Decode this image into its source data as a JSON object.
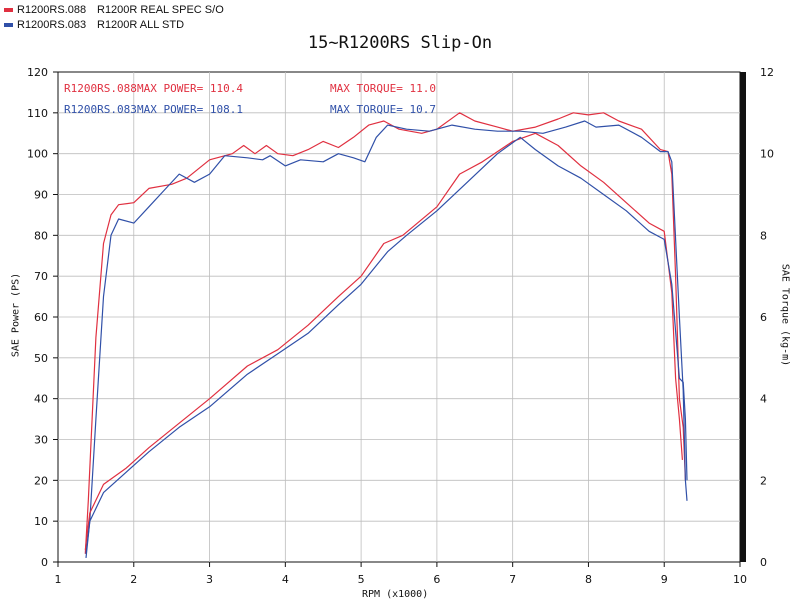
{
  "legend": [
    {
      "code": "R1200RS.088",
      "desc": "R1200R REAL SPEC S/O",
      "color": "#e03040"
    },
    {
      "code": "R1200RS.083",
      "desc": "R1200R ALL STD",
      "color": "#3050a8"
    }
  ],
  "chart_data": {
    "type": "line",
    "title": "15~R1200RS  Slip-On",
    "xlabel": "RPM (x1000)",
    "ylabel_left": "SAE Power (PS)",
    "ylabel_right": "SAE Torque (kg-m)",
    "xlim": [
      1,
      10
    ],
    "ylim_left": [
      0,
      120
    ],
    "ylim_right": [
      0,
      12
    ],
    "x_ticks": [
      "1",
      "2",
      "3",
      "4",
      "5",
      "6",
      "7",
      "8",
      "9",
      "10"
    ],
    "y_ticks_left": [
      "0",
      "10",
      "20",
      "30",
      "40",
      "50",
      "60",
      "70",
      "80",
      "90",
      "100",
      "110",
      "120"
    ],
    "y_ticks_right": [
      "0",
      "2",
      "4",
      "6",
      "8",
      "10",
      "12"
    ],
    "grid": true,
    "annotations": {
      "red_name": "R1200RS.088",
      "red_power": "MAX POWER= 110.4",
      "red_torque": "MAX TORQUE= 11.0",
      "blue_name": "R1200RS.083",
      "blue_power": "MAX POWER= 108.1",
      "blue_torque": "MAX TORQUE= 10.7"
    },
    "series": [
      {
        "name": "R1200RS.088",
        "measure": "power",
        "axis": "left",
        "color": "#e03040",
        "points": [
          [
            1.36,
            2
          ],
          [
            1.4,
            15
          ],
          [
            1.5,
            55
          ],
          [
            1.6,
            78
          ],
          [
            1.7,
            85
          ],
          [
            1.8,
            87.5
          ],
          [
            2.0,
            88
          ],
          [
            2.2,
            91.5
          ],
          [
            2.5,
            92.5
          ],
          [
            2.7,
            94
          ],
          [
            3.0,
            98.5
          ],
          [
            3.3,
            100
          ],
          [
            3.45,
            102
          ],
          [
            3.6,
            100
          ],
          [
            3.75,
            102
          ],
          [
            3.9,
            100
          ],
          [
            4.1,
            99.5
          ],
          [
            4.3,
            101
          ],
          [
            4.5,
            103
          ],
          [
            4.7,
            101.5
          ],
          [
            4.9,
            104
          ],
          [
            5.1,
            107
          ],
          [
            5.3,
            108
          ],
          [
            5.5,
            106
          ],
          [
            5.8,
            105
          ],
          [
            6.0,
            106
          ],
          [
            6.3,
            110
          ],
          [
            6.5,
            108
          ],
          [
            6.8,
            106.5
          ],
          [
            7.0,
            105.5
          ],
          [
            7.3,
            106.5
          ],
          [
            7.6,
            108.5
          ],
          [
            7.8,
            110
          ],
          [
            8.0,
            109.5
          ],
          [
            8.2,
            110
          ],
          [
            8.4,
            108
          ],
          [
            8.7,
            106
          ],
          [
            8.95,
            101
          ],
          [
            9.05,
            100.5
          ],
          [
            9.1,
            95
          ],
          [
            9.15,
            70
          ],
          [
            9.2,
            40
          ],
          [
            9.25,
            33
          ],
          [
            9.28,
            20
          ]
        ]
      },
      {
        "name": "R1200RS.083",
        "measure": "power",
        "axis": "left",
        "color": "#3050a8",
        "points": [
          [
            1.37,
            1
          ],
          [
            1.42,
            10
          ],
          [
            1.5,
            35
          ],
          [
            1.6,
            65
          ],
          [
            1.7,
            80
          ],
          [
            1.8,
            84
          ],
          [
            2.0,
            83
          ],
          [
            2.2,
            87
          ],
          [
            2.4,
            91
          ],
          [
            2.6,
            95
          ],
          [
            2.8,
            93
          ],
          [
            3.0,
            95
          ],
          [
            3.2,
            99.5
          ],
          [
            3.5,
            99
          ],
          [
            3.7,
            98.5
          ],
          [
            3.8,
            99.5
          ],
          [
            4.0,
            97
          ],
          [
            4.2,
            98.5
          ],
          [
            4.5,
            98
          ],
          [
            4.7,
            100
          ],
          [
            4.9,
            99
          ],
          [
            5.05,
            98
          ],
          [
            5.2,
            104
          ],
          [
            5.35,
            107
          ],
          [
            5.6,
            106
          ],
          [
            5.9,
            105.5
          ],
          [
            6.2,
            107
          ],
          [
            6.5,
            106
          ],
          [
            6.8,
            105.5
          ],
          [
            7.1,
            105.5
          ],
          [
            7.4,
            105
          ],
          [
            7.7,
            106.5
          ],
          [
            7.95,
            108
          ],
          [
            8.1,
            106.5
          ],
          [
            8.4,
            107
          ],
          [
            8.7,
            104
          ],
          [
            8.95,
            100.5
          ],
          [
            9.05,
            100.5
          ],
          [
            9.1,
            98
          ],
          [
            9.2,
            60
          ],
          [
            9.25,
            42
          ],
          [
            9.28,
            20
          ],
          [
            9.3,
            15
          ]
        ]
      },
      {
        "name": "R1200RS.088",
        "measure": "torque",
        "axis": "right",
        "color": "#e03040",
        "points": [
          [
            1.36,
            0.3
          ],
          [
            1.42,
            1.2
          ],
          [
            1.6,
            1.9
          ],
          [
            1.9,
            2.3
          ],
          [
            2.2,
            2.8
          ],
          [
            2.6,
            3.4
          ],
          [
            3.0,
            4.0
          ],
          [
            3.5,
            4.8
          ],
          [
            3.9,
            5.2
          ],
          [
            4.3,
            5.8
          ],
          [
            4.7,
            6.5
          ],
          [
            5.0,
            7.0
          ],
          [
            5.3,
            7.8
          ],
          [
            5.55,
            8.0
          ],
          [
            6.0,
            8.7
          ],
          [
            6.3,
            9.5
          ],
          [
            6.6,
            9.8
          ],
          [
            7.0,
            10.3
          ],
          [
            7.3,
            10.5
          ],
          [
            7.6,
            10.2
          ],
          [
            7.9,
            9.7
          ],
          [
            8.2,
            9.3
          ],
          [
            8.5,
            8.8
          ],
          [
            8.8,
            8.3
          ],
          [
            9.0,
            8.1
          ],
          [
            9.1,
            6.6
          ],
          [
            9.15,
            4.5
          ],
          [
            9.2,
            3.5
          ],
          [
            9.24,
            2.5
          ]
        ]
      },
      {
        "name": "R1200RS.083",
        "measure": "torque",
        "axis": "right",
        "color": "#3050a8",
        "points": [
          [
            1.37,
            0.2
          ],
          [
            1.42,
            1.0
          ],
          [
            1.6,
            1.7
          ],
          [
            1.9,
            2.2
          ],
          [
            2.2,
            2.7
          ],
          [
            2.6,
            3.3
          ],
          [
            3.0,
            3.8
          ],
          [
            3.5,
            4.6
          ],
          [
            3.9,
            5.1
          ],
          [
            4.3,
            5.6
          ],
          [
            4.7,
            6.3
          ],
          [
            5.0,
            6.8
          ],
          [
            5.35,
            7.6
          ],
          [
            5.6,
            8.0
          ],
          [
            6.0,
            8.6
          ],
          [
            6.4,
            9.3
          ],
          [
            6.8,
            10.0
          ],
          [
            7.1,
            10.4
          ],
          [
            7.3,
            10.1
          ],
          [
            7.6,
            9.7
          ],
          [
            7.9,
            9.4
          ],
          [
            8.2,
            9.0
          ],
          [
            8.5,
            8.6
          ],
          [
            8.8,
            8.1
          ],
          [
            9.0,
            7.9
          ],
          [
            9.1,
            6.8
          ],
          [
            9.2,
            4.5
          ],
          [
            9.25,
            4.4
          ],
          [
            9.28,
            3.5
          ],
          [
            9.3,
            2.0
          ]
        ]
      }
    ]
  }
}
